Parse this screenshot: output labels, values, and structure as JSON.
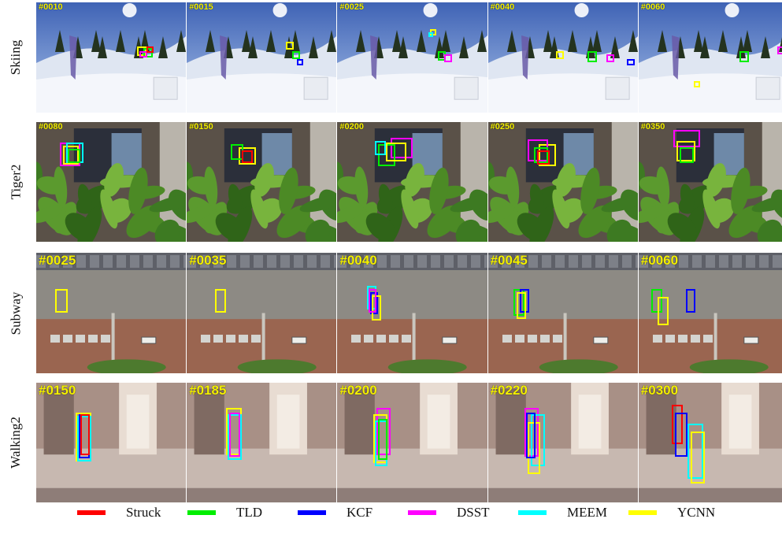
{
  "rows": [
    {
      "label": "Skiing",
      "frames": [
        "#0010",
        "#0015",
        "#0025",
        "#0040",
        "#0060"
      ]
    },
    {
      "label": "Tiger2",
      "frames": [
        "#0080",
        "#0150",
        "#0200",
        "#0250",
        "#0350"
      ]
    },
    {
      "label": "Subway",
      "frames": [
        "#0025",
        "#0035",
        "#0040",
        "#0045",
        "#0060"
      ]
    },
    {
      "label": "Walking2",
      "frames": [
        "#0150",
        "#0185",
        "#0200",
        "#0220",
        "#0300"
      ]
    }
  ],
  "legend": [
    {
      "label": "Struck",
      "color": "#ff0000"
    },
    {
      "label": "TLD",
      "color": "#00ee00"
    },
    {
      "label": "KCF",
      "color": "#0000ff"
    },
    {
      "label": "DSST",
      "color": "#ff00ff"
    },
    {
      "label": "MEEM",
      "color": "#00ffff"
    },
    {
      "label": "YCNN",
      "color": "#ffff00"
    }
  ]
}
